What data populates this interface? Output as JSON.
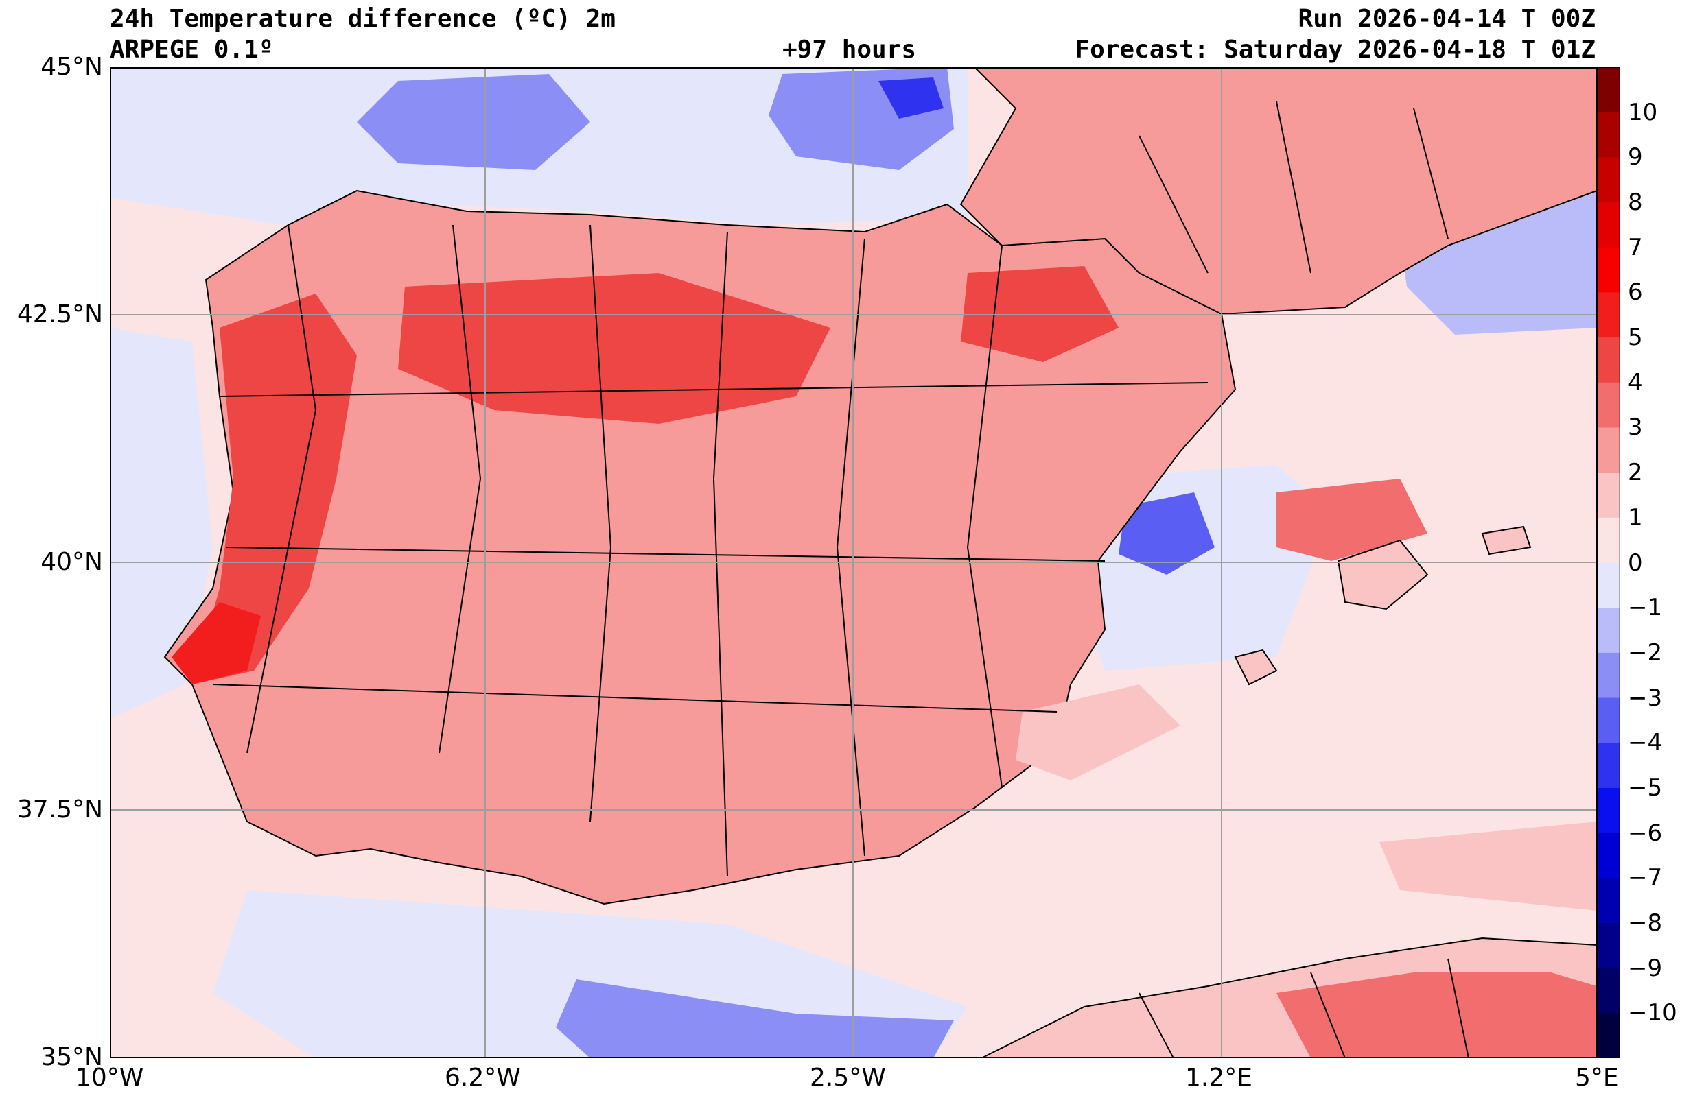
{
  "header": {
    "title": "24h Temperature difference (ºC) 2m",
    "model": "ARPEGE 0.1º",
    "lead_time": "+97 hours",
    "run": "Run 2026-04-14 T 00Z",
    "forecast": "Forecast: Saturday 2026-04-18 T 01Z"
  },
  "axes": {
    "lat_labels": [
      "45°N",
      "42.5°N",
      "40°N",
      "37.5°N",
      "35°N"
    ],
    "lon_labels": [
      "10°W",
      "6.2°W",
      "2.5°W",
      "1.2°E",
      "5°E"
    ]
  },
  "colorbar": {
    "labels": [
      "10",
      "9",
      "8",
      "7",
      "6",
      "5",
      "4",
      "3",
      "2",
      "1",
      "0",
      "−1",
      "−2",
      "−3",
      "−4",
      "−5",
      "−6",
      "−7",
      "−8",
      "−9",
      "−10"
    ],
    "colors": {
      "pos": [
        "#fde4e4",
        "#fbc4c4",
        "#f79a9a",
        "#f26e6e",
        "#ee4545",
        "#f21e1e",
        "#f70000",
        "#e30000",
        "#c70000",
        "#a90000",
        "#7e0000"
      ],
      "neg": [
        "#e4e6fb",
        "#b9bcf8",
        "#8a8ef5",
        "#5a5ef2",
        "#2f33f0",
        "#0a0ff0",
        "#0000d6",
        "#0000b0",
        "#00008a",
        "#000066",
        "#00003f"
      ]
    }
  },
  "map": {
    "region": "Iberian Peninsula",
    "land_color": "#f79a9a",
    "sea_color": "#fde4e4",
    "cool_color": "#b9bcf8"
  }
}
